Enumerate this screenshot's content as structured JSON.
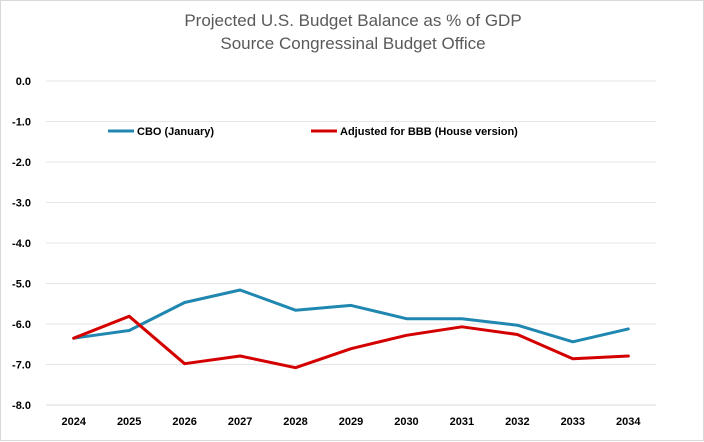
{
  "chart_data": {
    "type": "line",
    "title": "Projected U.S. Budget Balance as % of GDP",
    "subtitle": "Source Congressinal Budget Office",
    "xlabel": "",
    "ylabel": "",
    "x": [
      "2024",
      "2025",
      "2026",
      "2027",
      "2028",
      "2029",
      "2030",
      "2031",
      "2032",
      "2033",
      "2034"
    ],
    "ylim": [
      -8.0,
      0.0
    ],
    "yticks": [
      "0.0",
      "-1.0",
      "-2.0",
      "-3.0",
      "-4.0",
      "-5.0",
      "-6.0",
      "-7.0",
      "-8.0"
    ],
    "grid": "horizontal",
    "legend_position": "top",
    "series": [
      {
        "name": "CBO (January)",
        "color": "#1f87b0",
        "values": [
          -6.35,
          -6.16,
          -5.47,
          -5.16,
          -5.66,
          -5.54,
          -5.87,
          -5.87,
          -6.03,
          -6.44,
          -6.12
        ]
      },
      {
        "name": "Adjusted for BBB (House version)",
        "color": "#d40000",
        "values": [
          -6.35,
          -5.81,
          -6.98,
          -6.79,
          -7.08,
          -6.61,
          -6.28,
          -6.07,
          -6.26,
          -6.86,
          -6.79
        ]
      }
    ]
  }
}
